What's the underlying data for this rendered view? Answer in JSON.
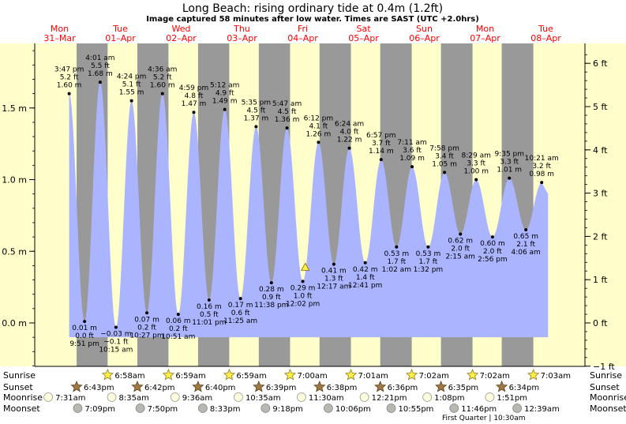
{
  "title": "Long Beach: rising  ordinary tide at 0.4m (1.2ft)",
  "subtitle": "Image captured 58 minutes after low water. Times are SAST (UTC +2.0hrs)",
  "colors": {
    "day_bg": "#ffffcc",
    "night_bg": "#999999",
    "tide_fill": "#aab4ff",
    "day_label": "#ff0000",
    "star_fill": "#ffee44",
    "sunset_star": "#a07840"
  },
  "chart_data": {
    "type": "area",
    "title": "Long Beach: rising  ordinary tide at 0.4m (1.2ft)",
    "ylim_m": [
      -0.3,
      1.95
    ],
    "ylim_ft": [
      -1,
      6.4
    ],
    "y_ticks_m": [
      {
        "v": 0.0,
        "label": "0.0 m"
      },
      {
        "v": 0.5,
        "label": "0.5 m"
      },
      {
        "v": 1.0,
        "label": "1.0 m"
      },
      {
        "v": 1.5,
        "label": "1.5 m"
      }
    ],
    "y_ticks_ft": [
      {
        "v": -1,
        "label": "−1 ft"
      },
      {
        "v": 0,
        "label": "0 ft"
      },
      {
        "v": 1,
        "label": "1 ft"
      },
      {
        "v": 2,
        "label": "2 ft"
      },
      {
        "v": 3,
        "label": "3 ft"
      },
      {
        "v": 4,
        "label": "4 ft"
      },
      {
        "v": 5,
        "label": "5 ft"
      },
      {
        "v": 6,
        "label": "6 ft"
      }
    ],
    "days": [
      {
        "day": "Mon",
        "date": "31–Mar"
      },
      {
        "day": "Tue",
        "date": "01–Apr"
      },
      {
        "day": "Wed",
        "date": "02–Apr"
      },
      {
        "day": "Thu",
        "date": "03–Apr"
      },
      {
        "day": "Fri",
        "date": "04–Apr"
      },
      {
        "day": "Sat",
        "date": "05–Apr"
      },
      {
        "day": "Sun",
        "date": "06–Apr"
      },
      {
        "day": "Mon",
        "date": "07–Apr"
      },
      {
        "day": "Tue",
        "date": "08–Apr"
      }
    ],
    "tides": [
      {
        "type": "high",
        "time": "3:47 pm",
        "ft": "5.2 ft",
        "m": 1.6,
        "m_label": "1.60 m",
        "day": 0,
        "hour": 15.78
      },
      {
        "type": "low",
        "time": "9:51 pm",
        "ft": "0.0 ft",
        "m": 0.01,
        "m_label": "0.01 m",
        "day": 0,
        "hour": 21.85
      },
      {
        "type": "high",
        "time": "4:01 am",
        "ft": "5.5 ft",
        "m": 1.68,
        "m_label": "1.68 m",
        "day": 1,
        "hour": 4.02
      },
      {
        "type": "low",
        "time": "10:15 am",
        "ft": "−0.1 ft",
        "m": -0.03,
        "m_label": "−0.03 m",
        "day": 1,
        "hour": 10.25
      },
      {
        "type": "high",
        "time": "4:24 pm",
        "ft": "5.1 ft",
        "m": 1.55,
        "m_label": "1.55 m",
        "day": 1,
        "hour": 16.4
      },
      {
        "type": "low",
        "time": "10:27 pm",
        "ft": "0.2 ft",
        "m": 0.07,
        "m_label": "0.07 m",
        "day": 1,
        "hour": 22.45
      },
      {
        "type": "high",
        "time": "4:36 am",
        "ft": "5.2 ft",
        "m": 1.6,
        "m_label": "1.60 m",
        "day": 2,
        "hour": 4.6
      },
      {
        "type": "low",
        "time": "10:51 am",
        "ft": "0.2 ft",
        "m": 0.06,
        "m_label": "0.06 m",
        "day": 2,
        "hour": 10.85
      },
      {
        "type": "high",
        "time": "4:59 pm",
        "ft": "4.8 ft",
        "m": 1.47,
        "m_label": "1.47 m",
        "day": 2,
        "hour": 16.98
      },
      {
        "type": "low",
        "time": "11:01 pm",
        "ft": "0.5 ft",
        "m": 0.16,
        "m_label": "0.16 m",
        "day": 2,
        "hour": 23.02
      },
      {
        "type": "high",
        "time": "5:12 am",
        "ft": "4.9 ft",
        "m": 1.49,
        "m_label": "1.49 m",
        "day": 3,
        "hour": 5.2
      },
      {
        "type": "low",
        "time": "11:25 am",
        "ft": "0.6 ft",
        "m": 0.17,
        "m_label": "0.17 m",
        "day": 3,
        "hour": 11.42
      },
      {
        "type": "high",
        "time": "5:35 pm",
        "ft": "4.5 ft",
        "m": 1.37,
        "m_label": "1.37 m",
        "day": 3,
        "hour": 17.58
      },
      {
        "type": "low",
        "time": "11:38 pm",
        "ft": "0.9 ft",
        "m": 0.28,
        "m_label": "0.28 m",
        "day": 3,
        "hour": 23.63
      },
      {
        "type": "high",
        "time": "5:47 am",
        "ft": "4.5 ft",
        "m": 1.36,
        "m_label": "1.36 m",
        "day": 4,
        "hour": 5.78
      },
      {
        "type": "low",
        "time": "12:02 pm",
        "ft": "1.0 ft",
        "m": 0.29,
        "m_label": "0.29 m",
        "day": 4,
        "hour": 12.03
      },
      {
        "type": "high",
        "time": "6:12 pm",
        "ft": "4.1 ft",
        "m": 1.26,
        "m_label": "1.26 m",
        "day": 4,
        "hour": 18.2
      },
      {
        "type": "low",
        "time": "12:17 am",
        "ft": "1.3 ft",
        "m": 0.41,
        "m_label": "0.41 m",
        "day": 5,
        "hour": 0.28
      },
      {
        "type": "high",
        "time": "6:24 am",
        "ft": "4.0 ft",
        "m": 1.22,
        "m_label": "1.22 m",
        "day": 5,
        "hour": 6.4
      },
      {
        "type": "low",
        "time": "12:41 pm",
        "ft": "1.4 ft",
        "m": 0.42,
        "m_label": "0.42 m",
        "day": 5,
        "hour": 12.68
      },
      {
        "type": "high",
        "time": "6:57 pm",
        "ft": "3.7 ft",
        "m": 1.14,
        "m_label": "1.14 m",
        "day": 5,
        "hour": 18.95
      },
      {
        "type": "low",
        "time": "1:02 am",
        "ft": "1.7 ft",
        "m": 0.53,
        "m_label": "0.53 m",
        "day": 6,
        "hour": 1.03
      },
      {
        "type": "high",
        "time": "7:11 am",
        "ft": "3.6 ft",
        "m": 1.09,
        "m_label": "1.09 m",
        "day": 6,
        "hour": 7.18
      },
      {
        "type": "low",
        "time": "1:32 pm",
        "ft": "1.7 ft",
        "m": 0.53,
        "m_label": "0.53 m",
        "day": 6,
        "hour": 13.53
      },
      {
        "type": "high",
        "time": "7:58 pm",
        "ft": "3.4 ft",
        "m": 1.05,
        "m_label": "1.05 m",
        "day": 6,
        "hour": 19.97
      },
      {
        "type": "low",
        "time": "2:15 am",
        "ft": "2.0 ft",
        "m": 0.62,
        "m_label": "0.62 m",
        "day": 7,
        "hour": 2.25
      },
      {
        "type": "high",
        "time": "8:29 am",
        "ft": "3.3 ft",
        "m": 1.0,
        "m_label": "1.00 m",
        "day": 7,
        "hour": 8.48
      },
      {
        "type": "low",
        "time": "2:56 pm",
        "ft": "2.0 ft",
        "m": 0.6,
        "m_label": "0.60 m",
        "day": 7,
        "hour": 14.93
      },
      {
        "type": "high",
        "time": "9:35 pm",
        "ft": "3.3 ft",
        "m": 1.01,
        "m_label": "1.01 m",
        "day": 7,
        "hour": 21.58
      },
      {
        "type": "low",
        "time": "4:06 am",
        "ft": "2.1 ft",
        "m": 0.65,
        "m_label": "0.65 m",
        "day": 8,
        "hour": 4.1
      },
      {
        "type": "high",
        "time": "10:21 am",
        "ft": "3.2 ft",
        "m": 0.98,
        "m_label": "0.98 m",
        "day": 8,
        "hour": 10.35
      }
    ],
    "current_marker": {
      "day": 4,
      "hour": 13.0,
      "m": 0.4
    },
    "rows": {
      "sunrise": {
        "label": "Sunrise",
        "entries": [
          {
            "day": 1,
            "time": "6:58am"
          },
          {
            "day": 2,
            "time": "6:59am"
          },
          {
            "day": 3,
            "time": "6:59am"
          },
          {
            "day": 4,
            "time": "7:00am"
          },
          {
            "day": 5,
            "time": "7:01am"
          },
          {
            "day": 6,
            "time": "7:02am"
          },
          {
            "day": 7,
            "time": "7:02am"
          },
          {
            "day": 8,
            "time": "7:03am"
          }
        ]
      },
      "sunset": {
        "label": "Sunset",
        "entries": [
          {
            "day": 0,
            "time": "6:43pm"
          },
          {
            "day": 1,
            "time": "6:42pm"
          },
          {
            "day": 2,
            "time": "6:40pm"
          },
          {
            "day": 3,
            "time": "6:39pm"
          },
          {
            "day": 4,
            "time": "6:38pm"
          },
          {
            "day": 5,
            "time": "6:36pm"
          },
          {
            "day": 6,
            "time": "6:35pm"
          },
          {
            "day": 7,
            "time": "6:34pm"
          }
        ]
      },
      "moonrise": {
        "label": "Moonrise",
        "entries": [
          {
            "day": 0,
            "time": "7:31am"
          },
          {
            "day": 1,
            "time": "8:35am"
          },
          {
            "day": 2,
            "time": "9:36am"
          },
          {
            "day": 3,
            "time": "10:35am"
          },
          {
            "day": 4,
            "time": "11:30am"
          },
          {
            "day": 5,
            "time": "12:21pm"
          },
          {
            "day": 6,
            "time": "1:08pm"
          },
          {
            "day": 7,
            "time": "1:51pm"
          }
        ]
      },
      "moonset": {
        "label": "Moonset",
        "entries": [
          {
            "day": 0,
            "time": "7:09pm"
          },
          {
            "day": 1,
            "time": "7:50pm"
          },
          {
            "day": 2,
            "time": "8:33pm"
          },
          {
            "day": 3,
            "time": "9:18pm"
          },
          {
            "day": 4,
            "time": "10:06pm"
          },
          {
            "day": 5,
            "time": "10:55pm"
          },
          {
            "day": 6,
            "time": "11:46pm"
          },
          {
            "day": 8,
            "time": "12:39am"
          }
        ]
      }
    },
    "moon_phase": {
      "label": "First Quarter",
      "time": "10:30am"
    }
  }
}
